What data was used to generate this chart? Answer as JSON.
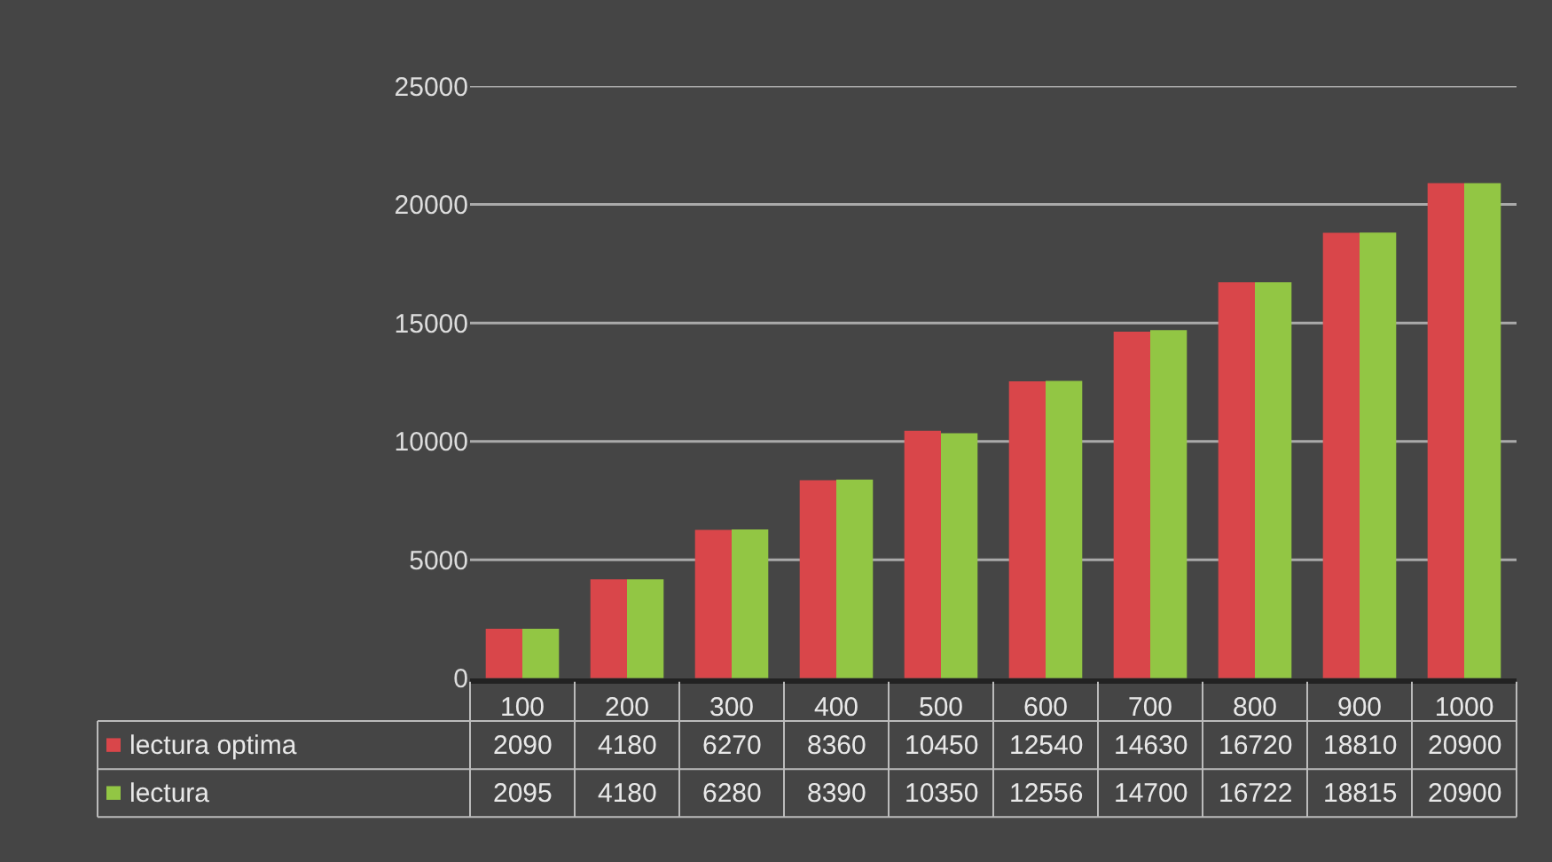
{
  "chart_data": {
    "type": "bar",
    "categories": [
      "100",
      "200",
      "300",
      "400",
      "500",
      "600",
      "700",
      "800",
      "900",
      "1000"
    ],
    "series": [
      {
        "name": "lectura optima",
        "color": "#d9464a",
        "values": [
          2090,
          4180,
          6270,
          8360,
          10450,
          12540,
          14630,
          16720,
          18810,
          20900
        ]
      },
      {
        "name": "lectura",
        "color": "#92c644",
        "values": [
          2095,
          4180,
          6280,
          8390,
          10350,
          12556,
          14700,
          16722,
          18815,
          20900
        ]
      }
    ],
    "ylim": [
      0,
      25000
    ],
    "yticks": [
      0,
      5000,
      10000,
      15000,
      20000,
      25000
    ],
    "grid": "y",
    "data_labels": true,
    "legend": "bottom"
  }
}
